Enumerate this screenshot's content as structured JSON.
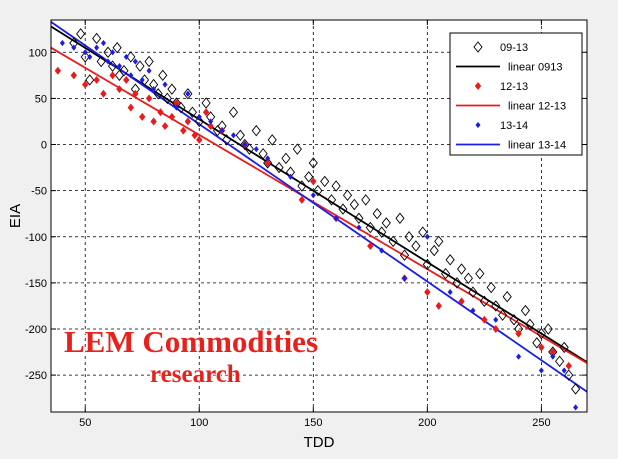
{
  "watermark": {
    "line1": "LEM Commodities",
    "line2": "research"
  },
  "chart_data": {
    "type": "scatter",
    "xlabel": "TDD",
    "ylabel": "EIA",
    "xlim": [
      35,
      270
    ],
    "ylim": [
      -290,
      135
    ],
    "xticks": [
      50,
      100,
      150,
      200,
      250
    ],
    "yticks": [
      100,
      50,
      0,
      -50,
      -100,
      -150,
      -200,
      -250
    ],
    "grid": true,
    "legend_position": "top-right",
    "legend": [
      "09-13",
      "linear 0913",
      "12-13",
      "linear 12-13",
      "13-14",
      "linear 13-14"
    ],
    "series": [
      {
        "name": "09-13",
        "marker": "diamond-open",
        "color": "#000000",
        "x": [
          45,
          48,
          50,
          52,
          55,
          57,
          60,
          62,
          64,
          65,
          67,
          70,
          72,
          74,
          76,
          78,
          80,
          82,
          84,
          86,
          88,
          90,
          92,
          95,
          97,
          100,
          103,
          105,
          108,
          110,
          112,
          115,
          118,
          120,
          122,
          125,
          128,
          130,
          132,
          135,
          138,
          140,
          143,
          145,
          148,
          150,
          152,
          155,
          158,
          160,
          163,
          165,
          168,
          170,
          173,
          175,
          178,
          180,
          182,
          185,
          188,
          190,
          192,
          195,
          198,
          200,
          203,
          205,
          208,
          210,
          213,
          215,
          218,
          220,
          223,
          225,
          228,
          230,
          233,
          235,
          238,
          240,
          243,
          245,
          248,
          250,
          253,
          255,
          258,
          260,
          262,
          265
        ],
        "y": [
          110,
          120,
          95,
          70,
          115,
          90,
          100,
          85,
          105,
          75,
          80,
          95,
          60,
          85,
          70,
          90,
          65,
          55,
          75,
          50,
          60,
          45,
          40,
          55,
          35,
          25,
          45,
          30,
          15,
          20,
          5,
          35,
          10,
          0,
          -5,
          15,
          -10,
          -20,
          5,
          -25,
          -15,
          -30,
          -5,
          -45,
          -35,
          -20,
          -50,
          -40,
          -60,
          -45,
          -70,
          -55,
          -65,
          -80,
          -60,
          -90,
          -75,
          -95,
          -85,
          -105,
          -80,
          -120,
          -100,
          -110,
          -95,
          -130,
          -115,
          -105,
          -140,
          -125,
          -150,
          -135,
          -145,
          -160,
          -140,
          -170,
          -155,
          -175,
          -185,
          -165,
          -190,
          -200,
          -180,
          -195,
          -215,
          -205,
          -200,
          -225,
          -235,
          -220,
          -250,
          -265
        ]
      },
      {
        "name": "12-13",
        "marker": "diamond-filled",
        "color": "#e81c1c",
        "x": [
          38,
          45,
          50,
          55,
          58,
          62,
          65,
          68,
          70,
          72,
          75,
          78,
          80,
          83,
          85,
          88,
          90,
          93,
          95,
          98,
          100,
          103,
          105,
          110,
          120,
          130,
          145,
          150,
          160,
          175,
          190,
          200,
          205,
          215,
          225,
          230,
          240,
          250,
          255,
          262
        ],
        "y": [
          80,
          75,
          65,
          70,
          55,
          75,
          60,
          70,
          40,
          55,
          30,
          50,
          25,
          35,
          20,
          30,
          45,
          15,
          25,
          10,
          5,
          35,
          20,
          15,
          0,
          -20,
          -60,
          -40,
          -80,
          -110,
          -145,
          -160,
          -175,
          -170,
          -190,
          -200,
          -205,
          -220,
          -225,
          -240
        ]
      },
      {
        "name": "13-14",
        "marker": "diamond-small",
        "color": "#1c1ce8",
        "x": [
          40,
          45,
          50,
          52,
          55,
          58,
          60,
          62,
          65,
          68,
          70,
          72,
          75,
          78,
          80,
          85,
          90,
          95,
          100,
          105,
          110,
          115,
          120,
          125,
          130,
          140,
          150,
          160,
          170,
          180,
          190,
          200,
          210,
          220,
          230,
          240,
          250,
          255,
          260,
          265
        ],
        "y": [
          110,
          105,
          100,
          95,
          105,
          110,
          90,
          100,
          85,
          95,
          75,
          90,
          70,
          80,
          60,
          65,
          40,
          55,
          30,
          25,
          15,
          10,
          0,
          -5,
          -15,
          -35,
          -55,
          -80,
          -90,
          -115,
          -145,
          -100,
          -160,
          -180,
          -190,
          -230,
          -245,
          -230,
          -245,
          -285
        ]
      }
    ],
    "fits": [
      {
        "name": "linear 0913",
        "color": "#000000",
        "x": [
          35,
          270
        ],
        "y": [
          128,
          -236
        ]
      },
      {
        "name": "linear 12-13",
        "color": "#e81c1c",
        "x": [
          35,
          270
        ],
        "y": [
          105,
          -237
        ]
      },
      {
        "name": "linear 13-14",
        "color": "#1c1ce8",
        "x": [
          35,
          270
        ],
        "y": [
          133,
          -268
        ]
      }
    ]
  }
}
